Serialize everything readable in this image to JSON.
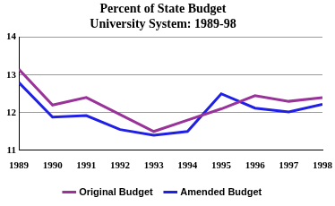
{
  "chart_data": {
    "type": "line",
    "title": "Percent of State Budget",
    "subtitle": "University System: 1989-98",
    "x": [
      1989,
      1990,
      1991,
      1992,
      1993,
      1994,
      1995,
      1996,
      1997,
      1998
    ],
    "series": [
      {
        "name": "Original Budget",
        "color": "#993399",
        "line_style": "solid",
        "values": [
          13.15,
          12.2,
          12.4,
          11.95,
          11.5,
          11.8,
          12.1,
          12.45,
          12.3,
          12.4
        ]
      },
      {
        "name": "Amended Budget",
        "color": "#1f1fe6",
        "line_style": "solid",
        "values": [
          12.8,
          11.88,
          11.92,
          11.55,
          11.4,
          11.5,
          12.5,
          12.12,
          12.02,
          12.22
        ]
      }
    ],
    "xlim": [
      1989,
      1998
    ],
    "xticks": [
      1989,
      1990,
      1991,
      1992,
      1993,
      1994,
      1995,
      1996,
      1997,
      1998
    ],
    "ylim": [
      11,
      14
    ],
    "yticks": [
      11,
      12,
      13,
      14
    ],
    "grid": true,
    "legend": "bottom"
  }
}
